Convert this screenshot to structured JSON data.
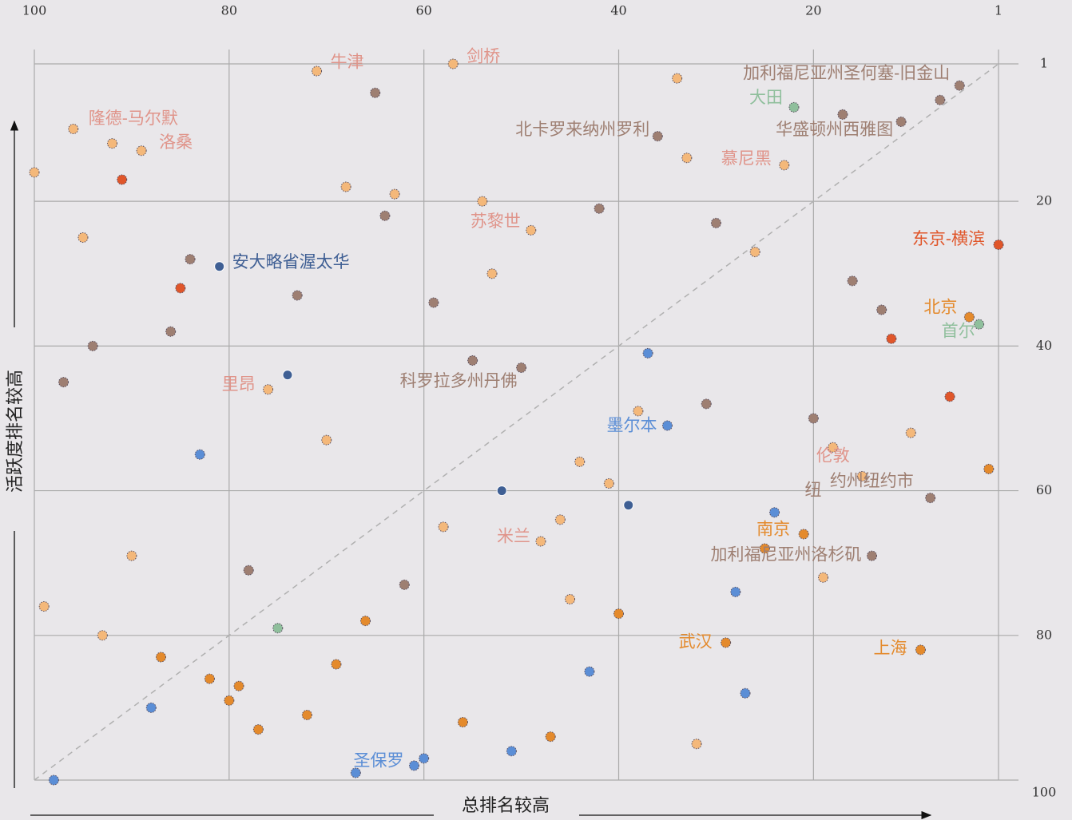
{
  "chart_data": {
    "type": "scatter",
    "x_label": "总排名较高",
    "y_label": "活跃度排名较高",
    "xlim": [
      100,
      1
    ],
    "ylim": [
      1,
      100
    ],
    "xticks": [
      100,
      80,
      60,
      40,
      20,
      1
    ],
    "yticks": [
      1,
      20,
      40,
      60,
      80,
      100
    ],
    "grid": true,
    "diagonal": true,
    "annotations": [
      {
        "text": "纽",
        "color": "#9e7f72"
      }
    ],
    "points": [
      {
        "x": 71,
        "y": 2,
        "color": "#f4b87a",
        "label": "牛津",
        "label_color": "#e0948a"
      },
      {
        "x": 57,
        "y": 1,
        "color": "#f4b87a",
        "label": "剑桥",
        "label_color": "#e0948a"
      },
      {
        "x": 65,
        "y": 5,
        "color": "#9e7f72"
      },
      {
        "x": 34,
        "y": 3,
        "color": "#f4b87a"
      },
      {
        "x": 5,
        "y": 4,
        "color": "#9e7f72",
        "label": "加利福尼亚州圣何塞-旧金山",
        "label_color": "#9e7f72"
      },
      {
        "x": 7,
        "y": 6,
        "color": "#9e7f72"
      },
      {
        "x": 22,
        "y": 7,
        "color": "#8fbf9c",
        "label": "大田",
        "label_color": "#8fbf9c"
      },
      {
        "x": 17,
        "y": 8,
        "color": "#9e7f72"
      },
      {
        "x": 11,
        "y": 9,
        "color": "#9e7f72",
        "label": "华盛顿州西雅图",
        "label_color": "#9e7f72"
      },
      {
        "x": 36,
        "y": 11,
        "color": "#9e7f72",
        "label": "北卡罗来纳州罗利",
        "label_color": "#9e7f72"
      },
      {
        "x": 33,
        "y": 14,
        "color": "#f4b87a"
      },
      {
        "x": 23,
        "y": 15,
        "color": "#f4b87a",
        "label": "慕尼黑",
        "label_color": "#e0948a"
      },
      {
        "x": 96,
        "y": 10,
        "color": "#f4b87a",
        "label": "隆德-马尔默",
        "label_color": "#e0948a"
      },
      {
        "x": 92,
        "y": 12,
        "color": "#f4b87a"
      },
      {
        "x": 89,
        "y": 13,
        "color": "#f4b87a",
        "label": "洛桑",
        "label_color": "#e0948a"
      },
      {
        "x": 100,
        "y": 16,
        "color": "#f4b87a"
      },
      {
        "x": 91,
        "y": 17,
        "color": "#e0562a"
      },
      {
        "x": 68,
        "y": 18,
        "color": "#f4b87a"
      },
      {
        "x": 63,
        "y": 19,
        "color": "#f4b87a"
      },
      {
        "x": 54,
        "y": 20,
        "color": "#f4b87a"
      },
      {
        "x": 42,
        "y": 21,
        "color": "#9e7f72"
      },
      {
        "x": 64,
        "y": 22,
        "color": "#9e7f72"
      },
      {
        "x": 49,
        "y": 24,
        "color": "#f4b87a",
        "label": "苏黎世",
        "label_color": "#e0948a"
      },
      {
        "x": 30,
        "y": 23,
        "color": "#9e7f72"
      },
      {
        "x": 1,
        "y": 26,
        "color": "#e0562a",
        "label": "东京-横滨",
        "label_color": "#e0562a"
      },
      {
        "x": 95,
        "y": 25,
        "color": "#f4b87a"
      },
      {
        "x": 26,
        "y": 27,
        "color": "#f4b87a"
      },
      {
        "x": 84,
        "y": 28,
        "color": "#9e7f72"
      },
      {
        "x": 81,
        "y": 29,
        "color": "#3f5f94",
        "label": "安大略省渥太华",
        "label_color": "#3f5f94"
      },
      {
        "x": 85,
        "y": 32,
        "color": "#e0562a"
      },
      {
        "x": 53,
        "y": 30,
        "color": "#f4b87a"
      },
      {
        "x": 16,
        "y": 31,
        "color": "#9e7f72"
      },
      {
        "x": 73,
        "y": 33,
        "color": "#9e7f72"
      },
      {
        "x": 59,
        "y": 34,
        "color": "#9e7f72"
      },
      {
        "x": 13,
        "y": 35,
        "color": "#9e7f72"
      },
      {
        "x": 4,
        "y": 36,
        "color": "#e48a2c",
        "label": "北京",
        "label_color": "#e48a2c"
      },
      {
        "x": 3,
        "y": 37,
        "color": "#8fbf9c",
        "label": "首尔",
        "label_color": "#8fbf9c"
      },
      {
        "x": 86,
        "y": 38,
        "color": "#9e7f72"
      },
      {
        "x": 12,
        "y": 39,
        "color": "#e0562a"
      },
      {
        "x": 94,
        "y": 40,
        "color": "#9e7f72"
      },
      {
        "x": 37,
        "y": 41,
        "color": "#5b8ed6"
      },
      {
        "x": 55,
        "y": 42,
        "color": "#9e7f72"
      },
      {
        "x": 50,
        "y": 43,
        "color": "#9e7f72",
        "label": "科罗拉多州丹佛",
        "label_color": "#9e7f72"
      },
      {
        "x": 97,
        "y": 45,
        "color": "#9e7f72"
      },
      {
        "x": 74,
        "y": 44,
        "color": "#3f5f94"
      },
      {
        "x": 76,
        "y": 46,
        "color": "#f4b87a",
        "label": "里昂",
        "label_color": "#e0948a"
      },
      {
        "x": 6,
        "y": 47,
        "color": "#e0562a"
      },
      {
        "x": 31,
        "y": 48,
        "color": "#9e7f72"
      },
      {
        "x": 38,
        "y": 49,
        "color": "#f4b87a"
      },
      {
        "x": 35,
        "y": 51,
        "color": "#5b8ed6",
        "label": "墨尔本",
        "label_color": "#5b8ed6"
      },
      {
        "x": 20,
        "y": 50,
        "color": "#9e7f72"
      },
      {
        "x": 10,
        "y": 52,
        "color": "#f4b87a"
      },
      {
        "x": 70,
        "y": 53,
        "color": "#f4b87a"
      },
      {
        "x": 18,
        "y": 54,
        "color": "#f4b87a",
        "label": "伦敦",
        "label_color": "#e0948a"
      },
      {
        "x": 83,
        "y": 55,
        "color": "#5b8ed6"
      },
      {
        "x": 44,
        "y": 56,
        "color": "#f4b87a"
      },
      {
        "x": 15,
        "y": 58,
        "color": "#f4b87a",
        "label": "约州纽约市",
        "label_color": "#9e7f72"
      },
      {
        "x": 2,
        "y": 57,
        "color": "#e48a2c"
      },
      {
        "x": 41,
        "y": 59,
        "color": "#f4b87a"
      },
      {
        "x": 52,
        "y": 60,
        "color": "#3f5f94"
      },
      {
        "x": 39,
        "y": 62,
        "color": "#3f5f94"
      },
      {
        "x": 8,
        "y": 61,
        "color": "#9e7f72"
      },
      {
        "x": 24,
        "y": 63,
        "color": "#5b8ed6"
      },
      {
        "x": 46,
        "y": 64,
        "color": "#f4b87a"
      },
      {
        "x": 58,
        "y": 65,
        "color": "#f4b87a"
      },
      {
        "x": 21,
        "y": 66,
        "color": "#e48a2c",
        "label": "南京",
        "label_color": "#e48a2c"
      },
      {
        "x": 25,
        "y": 68,
        "color": "#e48a2c"
      },
      {
        "x": 48,
        "y": 67,
        "color": "#f4b87a",
        "label": "米兰",
        "label_color": "#e0948a"
      },
      {
        "x": 14,
        "y": 69,
        "color": "#9e7f72",
        "label": "加利福尼亚州洛杉矶",
        "label_color": "#9e7f72"
      },
      {
        "x": 90,
        "y": 69,
        "color": "#f4b87a"
      },
      {
        "x": 78,
        "y": 71,
        "color": "#9e7f72"
      },
      {
        "x": 19,
        "y": 72,
        "color": "#f4b87a"
      },
      {
        "x": 62,
        "y": 73,
        "color": "#9e7f72"
      },
      {
        "x": 28,
        "y": 74,
        "color": "#5b8ed6"
      },
      {
        "x": 99,
        "y": 76,
        "color": "#f4b87a"
      },
      {
        "x": 45,
        "y": 75,
        "color": "#f4b87a"
      },
      {
        "x": 40,
        "y": 77,
        "color": "#e48a2c"
      },
      {
        "x": 66,
        "y": 78,
        "color": "#e48a2c"
      },
      {
        "x": 75,
        "y": 79,
        "color": "#8fbf9c"
      },
      {
        "x": 93,
        "y": 80,
        "color": "#f4b87a"
      },
      {
        "x": 29,
        "y": 81,
        "color": "#e48a2c",
        "label": "武汉",
        "label_color": "#e48a2c"
      },
      {
        "x": 9,
        "y": 82,
        "color": "#e48a2c",
        "label": "上海",
        "label_color": "#e48a2c"
      },
      {
        "x": 87,
        "y": 83,
        "color": "#e48a2c"
      },
      {
        "x": 69,
        "y": 84,
        "color": "#e48a2c"
      },
      {
        "x": 43,
        "y": 85,
        "color": "#5b8ed6"
      },
      {
        "x": 82,
        "y": 86,
        "color": "#e48a2c"
      },
      {
        "x": 79,
        "y": 87,
        "color": "#e48a2c"
      },
      {
        "x": 27,
        "y": 88,
        "color": "#5b8ed6"
      },
      {
        "x": 80,
        "y": 89,
        "color": "#e48a2c"
      },
      {
        "x": 88,
        "y": 90,
        "color": "#5b8ed6"
      },
      {
        "x": 72,
        "y": 91,
        "color": "#e48a2c"
      },
      {
        "x": 56,
        "y": 92,
        "color": "#e48a2c"
      },
      {
        "x": 77,
        "y": 93,
        "color": "#e48a2c"
      },
      {
        "x": 47,
        "y": 94,
        "color": "#e48a2c"
      },
      {
        "x": 32,
        "y": 95,
        "color": "#f4b87a"
      },
      {
        "x": 51,
        "y": 96,
        "color": "#5b8ed6"
      },
      {
        "x": 60,
        "y": 97,
        "color": "#5b8ed6"
      },
      {
        "x": 61,
        "y": 98,
        "color": "#5b8ed6",
        "label": "圣保罗",
        "label_color": "#5b8ed6"
      },
      {
        "x": 67,
        "y": 99,
        "color": "#5b8ed6"
      },
      {
        "x": 98,
        "y": 100,
        "color": "#5b8ed6"
      }
    ]
  }
}
